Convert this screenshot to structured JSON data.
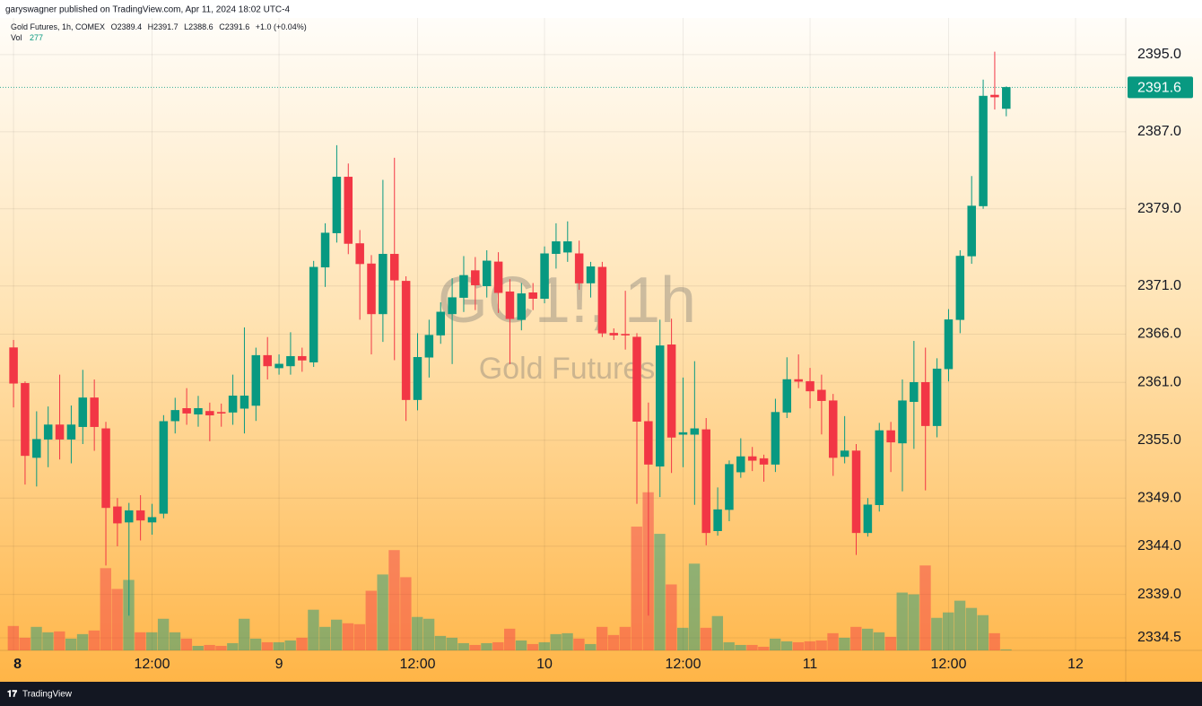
{
  "header": {
    "publisher": "garyswagner published on TradingView.com, Apr 11, 2024 18:02 UTC-4"
  },
  "footer": {
    "brand": "TradingView"
  },
  "chart_data": {
    "type": "candlestick",
    "legend_title": "Gold Futures, 1h, COMEX",
    "legend_ohlc": [
      "O2389.4",
      "H2391.7",
      "L2388.6",
      "C2391.6",
      "+1.0 (+0.04%)"
    ],
    "volume_label": "Vol",
    "watermark": [
      "GC1!, 1h",
      "Gold Futures"
    ],
    "up_color": "#089981",
    "down_color": "#f23645",
    "grid": true,
    "open": [
      2364.6,
      2360.9,
      2353.2,
      2355.1,
      2356.6,
      2355.1,
      2356.4,
      2359.4,
      2356.2,
      2348.1,
      2346.5,
      2347.7,
      2346.5,
      2347.4,
      2357.0,
      2358.3,
      2357.7,
      2358.0,
      2357.9,
      2357.9,
      2358.3,
      2358.6,
      2363.8,
      2362.5,
      2362.7,
      2363.7,
      2363.1,
      2372.95,
      2376.5,
      2382.3,
      2375.4,
      2373.3,
      2368.1,
      2374.3,
      2371.5,
      2359.2,
      2363.6,
      2365.9,
      2368.1,
      2369.8,
      2372.6,
      2371.0,
      2373.5,
      2370.4,
      2367.5,
      2370.3,
      2369.7,
      2374.35,
      2374.5,
      2374.35,
      2371.3,
      2372.95,
      2366.1,
      2366.0,
      2365.7,
      2356.95,
      2352.3,
      2364.9,
      2355.6,
      2355.6,
      2356.1,
      2345.6,
      2347.8,
      2351.7,
      2353.3,
      2353.1,
      2352.5,
      2357.9,
      2361.3,
      2361.1,
      2360.2,
      2359.1,
      2353.3,
      2353.9,
      2345.4,
      2348.3,
      2356.0,
      2354.7,
      2359.0,
      2361.0,
      2356.5,
      2362.4,
      2367.5,
      2374.1,
      2379.3,
      2390.8,
      2389.4
    ],
    "high": [
      2365.4,
      2361.1,
      2358.0,
      2358.5,
      2361.8,
      2358.6,
      2362.3,
      2361.3,
      2356.9,
      2349.0,
      2348.5,
      2349.3,
      2348.4,
      2357.6,
      2359.4,
      2360.4,
      2359.6,
      2358.9,
      2358.8,
      2361.8,
      2366.7,
      2364.6,
      2365.7,
      2363.9,
      2366.2,
      2364.6,
      2373.6,
      2377.5,
      2385.6,
      2383.7,
      2376.8,
      2374.2,
      2382.0,
      2384.3,
      2372.0,
      2366.1,
      2367.5,
      2369.3,
      2371.8,
      2374.1,
      2374.0,
      2374.7,
      2374.5,
      2371.7,
      2371.3,
      2371.3,
      2375.1,
      2377.5,
      2377.7,
      2375.7,
      2373.5,
      2373.5,
      2366.6,
      2370.5,
      2366.1,
      2358.9,
      2367.5,
      2367.6,
      2361.5,
      2363.2,
      2357.3,
      2350.1,
      2352.9,
      2355.2,
      2354.3,
      2353.5,
      2359.3,
      2363.6,
      2363.9,
      2362.5,
      2361.8,
      2359.8,
      2357.5,
      2354.6,
      2349.0,
      2356.8,
      2356.9,
      2361.3,
      2365.3,
      2364.6,
      2363.5,
      2368.6,
      2374.7,
      2382.4,
      2392.4,
      2395.3,
      2391.7
    ],
    "low": [
      2358.4,
      2350.4,
      2350.2,
      2352.2,
      2353.0,
      2352.6,
      2354.6,
      2353.9,
      2342.0,
      2344.0,
      2336.8,
      2344.6,
      2345.2,
      2346.9,
      2355.7,
      2356.6,
      2356.4,
      2354.9,
      2356.4,
      2356.6,
      2355.7,
      2357.0,
      2361.3,
      2361.8,
      2361.8,
      2362.1,
      2362.6,
      2370.9,
      2375.5,
      2374.3,
      2367.5,
      2363.9,
      2365.2,
      2363.3,
      2357.0,
      2358.1,
      2361.5,
      2365.0,
      2362.9,
      2368.3,
      2368.5,
      2369.8,
      2368.2,
      2362.9,
      2366.4,
      2368.5,
      2369.2,
      2372.8,
      2373.5,
      2370.6,
      2369.8,
      2365.7,
      2365.4,
      2364.4,
      2348.4,
      2336.8,
      2349.1,
      2351.6,
      2352.2,
      2348.3,
      2344.1,
      2345.1,
      2346.6,
      2351.1,
      2351.8,
      2350.7,
      2351.7,
      2357.3,
      2360.4,
      2358.3,
      2355.6,
      2351.3,
      2352.6,
      2343.1,
      2345.0,
      2347.6,
      2351.7,
      2349.7,
      2354.1,
      2349.8,
      2355.3,
      2361.1,
      2366.1,
      2373.3,
      2379.0,
      2389.3,
      2388.6
    ],
    "close": [
      2360.9,
      2353.4,
      2355.1,
      2356.6,
      2355.1,
      2356.6,
      2359.4,
      2356.4,
      2348.0,
      2346.4,
      2347.7,
      2346.7,
      2347.0,
      2356.95,
      2358.1,
      2357.8,
      2358.3,
      2357.6,
      2357.8,
      2359.6,
      2359.6,
      2363.8,
      2362.7,
      2362.9,
      2363.7,
      2363.3,
      2372.95,
      2376.5,
      2382.3,
      2375.4,
      2373.3,
      2368.1,
      2374.3,
      2371.6,
      2359.2,
      2363.6,
      2365.9,
      2368.3,
      2369.8,
      2372.1,
      2371.1,
      2373.6,
      2370.3,
      2367.6,
      2370.2,
      2369.7,
      2374.35,
      2375.6,
      2375.6,
      2371.3,
      2373.0,
      2366.1,
      2365.9,
      2365.9,
      2356.95,
      2352.5,
      2364.8,
      2355.3,
      2355.8,
      2356.2,
      2345.4,
      2347.8,
      2352.5,
      2353.3,
      2352.9,
      2352.5,
      2357.9,
      2361.3,
      2361.1,
      2360.1,
      2359.1,
      2353.2,
      2353.9,
      2345.4,
      2348.3,
      2356.0,
      2354.8,
      2359.1,
      2361.0,
      2356.5,
      2362.4,
      2367.5,
      2374.1,
      2379.3,
      2390.7,
      2390.6,
      2391.6
    ],
    "volume": [
      7425,
      3850,
      7150,
      5500,
      5775,
      3575,
      4950,
      6050,
      25025,
      18700,
      21450,
      5500,
      5500,
      9625,
      5500,
      3575,
      1375,
      1650,
      1375,
      2200,
      9625,
      3575,
      2475,
      2475,
      3025,
      3850,
      12375,
      7150,
      9350,
      8250,
      7975,
      18150,
      23100,
      30525,
      22275,
      10175,
      9625,
      4400,
      3850,
      2200,
      1650,
      2200,
      2475,
      6600,
      3025,
      1925,
      2475,
      4950,
      5225,
      3575,
      1925,
      7150,
      4675,
      7150,
      37675,
      48125,
      35475,
      20075,
      6875,
      26400,
      6875,
      10450,
      2475,
      1650,
      1650,
      1100,
      3575,
      2750,
      2475,
      2750,
      3025,
      5225,
      3850,
      7150,
      6600,
      5500,
      4125,
      17600,
      17050,
      25850,
      9900,
      11550,
      15125,
      12925,
      10725,
      5225,
      277
    ],
    "xlim": [
      -0.55,
      96.35
    ],
    "xticks": [
      {
        "value": 0,
        "label": "8"
      },
      {
        "value": 12,
        "label": "12:00"
      },
      {
        "value": 23,
        "label": "9"
      },
      {
        "value": 35,
        "label": "12:00"
      },
      {
        "value": 46,
        "label": "10"
      },
      {
        "value": 58,
        "label": "12:00"
      },
      {
        "value": 69,
        "label": "11"
      },
      {
        "value": 81,
        "label": "12:00"
      },
      {
        "value": 92,
        "label": "12"
      }
    ],
    "ylim": [
      2333.2,
      2398.8
    ],
    "yticks": [
      {
        "value": 2395,
        "label": "2395.0"
      },
      {
        "value": 2387,
        "label": "2387.0"
      },
      {
        "value": 2379,
        "label": "2379.0"
      },
      {
        "value": 2371,
        "label": "2371.0"
      },
      {
        "value": 2366,
        "label": "2366.0"
      },
      {
        "value": 2361,
        "label": "2361.0"
      },
      {
        "value": 2355,
        "label": "2355.0"
      },
      {
        "value": 2349,
        "label": "2349.0"
      },
      {
        "value": 2344,
        "label": "2344.0"
      },
      {
        "value": 2339,
        "label": "2339.0"
      },
      2334.5
    ]
  }
}
